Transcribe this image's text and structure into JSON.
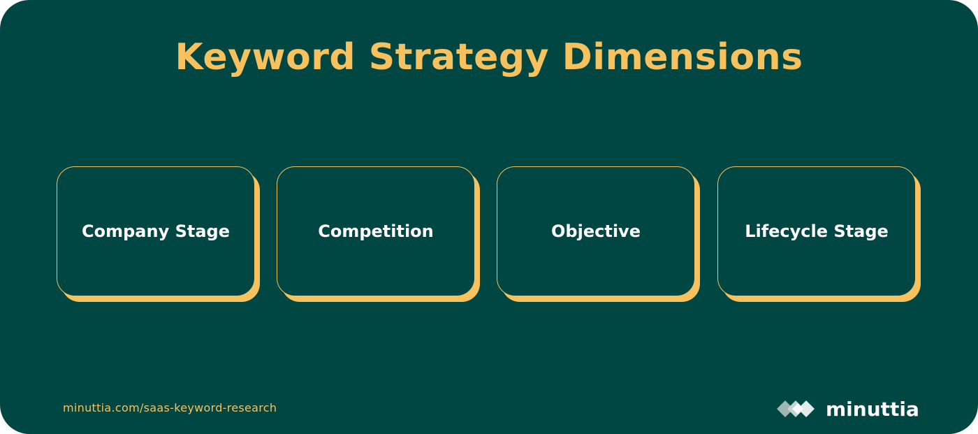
{
  "title": "Keyword Strategy Dimensions",
  "dimensions": [
    {
      "label": "Company Stage"
    },
    {
      "label": "Competition"
    },
    {
      "label": "Objective"
    },
    {
      "label": "Lifecycle Stage"
    }
  ],
  "footer": {
    "url": "minuttia.com/saas-keyword-research"
  },
  "brand": {
    "name": "minuttia"
  },
  "colors": {
    "background": "#004743",
    "accent": "#f7c15d",
    "text": "#ffffff"
  }
}
